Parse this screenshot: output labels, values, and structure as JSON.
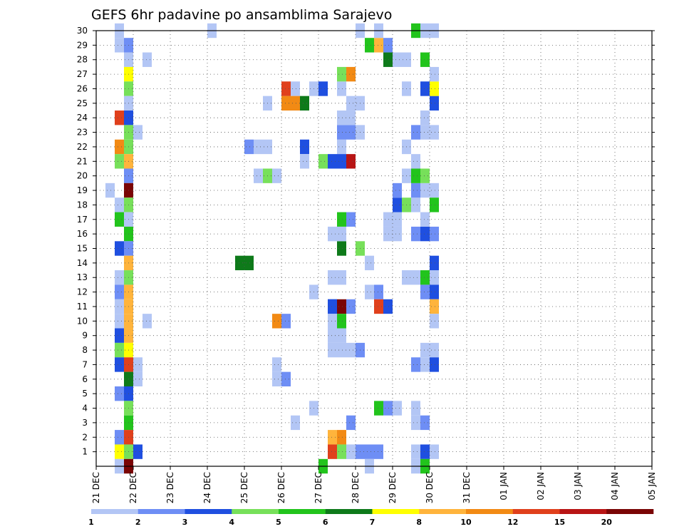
{
  "chart_data": {
    "type": "heatmap",
    "title": "GEFS 6hr padavine po ansamblima Sarajevo",
    "xlabel": "",
    "ylabel": "",
    "x_tick_labels": [
      "21 DEC",
      "22 DEC",
      "23 DEC",
      "24 DEC",
      "25 DEC",
      "26 DEC",
      "27 DEC",
      "28 DEC",
      "29 DEC",
      "30 DEC",
      "31 DEC",
      "01 JAN",
      "02 JAN",
      "03 JAN",
      "04 JAN",
      "05 JAN"
    ],
    "y_ticks": [
      1,
      2,
      3,
      4,
      5,
      6,
      7,
      8,
      9,
      10,
      11,
      12,
      13,
      14,
      15,
      16,
      17,
      18,
      19,
      20,
      21,
      22,
      23,
      24,
      25,
      26,
      27,
      28,
      29,
      30
    ],
    "xlim": [
      0,
      60
    ],
    "ylim": [
      0,
      30
    ],
    "grid": true,
    "colorbar": {
      "tick_labels": [
        "1",
        "2",
        "3",
        "4",
        "5",
        "6",
        "7",
        "8",
        "10",
        "12",
        "15",
        "20"
      ],
      "colors": [
        "#b3c6f5",
        "#6e8ef5",
        "#1f4fe0",
        "#77e05a",
        "#22c41c",
        "#0e7a1a",
        "#ffff00",
        "#ffb43c",
        "#f28a14",
        "#e0401c",
        "#b81414",
        "#7a0505"
      ]
    },
    "cells": [
      [
        2,
        30,
        0
      ],
      [
        3,
        29,
        1
      ],
      [
        2,
        29,
        0
      ],
      [
        3,
        28,
        0
      ],
      [
        5,
        28,
        0
      ],
      [
        3,
        27,
        6
      ],
      [
        3,
        26,
        3
      ],
      [
        3,
        25,
        0
      ],
      [
        2,
        24,
        9
      ],
      [
        3,
        24,
        2
      ],
      [
        3,
        23,
        3
      ],
      [
        4,
        23,
        0
      ],
      [
        2,
        22,
        8
      ],
      [
        3,
        22,
        3
      ],
      [
        2,
        21,
        3
      ],
      [
        3,
        21,
        7
      ],
      [
        3,
        20,
        1
      ],
      [
        1,
        19,
        0
      ],
      [
        3,
        19,
        11
      ],
      [
        2,
        18,
        0
      ],
      [
        3,
        18,
        3
      ],
      [
        2,
        17,
        4
      ],
      [
        3,
        17,
        0
      ],
      [
        3,
        16,
        4
      ],
      [
        2,
        15,
        2
      ],
      [
        3,
        15,
        1
      ],
      [
        3,
        14,
        7
      ],
      [
        2,
        13,
        0
      ],
      [
        3,
        13,
        3
      ],
      [
        2,
        12,
        1
      ],
      [
        3,
        12,
        7
      ],
      [
        2,
        11,
        0
      ],
      [
        3,
        11,
        7
      ],
      [
        2,
        10,
        0
      ],
      [
        3,
        10,
        7
      ],
      [
        5,
        10,
        0
      ],
      [
        2,
        9,
        2
      ],
      [
        3,
        9,
        7
      ],
      [
        2,
        8,
        3
      ],
      [
        3,
        8,
        6
      ],
      [
        2,
        7,
        2
      ],
      [
        3,
        7,
        9
      ],
      [
        4,
        7,
        0
      ],
      [
        3,
        6,
        5
      ],
      [
        4,
        6,
        0
      ],
      [
        2,
        5,
        1
      ],
      [
        3,
        5,
        2
      ],
      [
        3,
        4,
        3
      ],
      [
        3,
        3,
        4
      ],
      [
        2,
        2,
        1
      ],
      [
        3,
        2,
        9
      ],
      [
        2,
        1,
        6
      ],
      [
        3,
        1,
        3
      ],
      [
        4,
        1,
        2
      ],
      [
        2,
        0,
        0
      ],
      [
        3,
        0,
        11
      ],
      [
        12,
        30,
        0
      ],
      [
        15,
        14,
        5
      ],
      [
        16,
        14,
        5
      ],
      [
        16,
        22,
        1
      ],
      [
        17,
        22,
        0
      ],
      [
        18,
        22,
        0
      ],
      [
        17,
        20,
        0
      ],
      [
        18,
        20,
        3
      ],
      [
        19,
        20,
        0
      ],
      [
        18,
        25,
        0
      ],
      [
        20,
        25,
        0
      ],
      [
        19,
        7,
        0
      ],
      [
        19,
        6,
        0
      ],
      [
        20,
        6,
        1
      ],
      [
        19,
        10,
        8
      ],
      [
        20,
        10,
        1
      ],
      [
        20,
        26,
        9
      ],
      [
        21,
        26,
        0
      ],
      [
        20,
        25,
        8
      ],
      [
        21,
        25,
        8
      ],
      [
        22,
        25,
        5
      ],
      [
        21,
        3,
        0
      ],
      [
        22,
        22,
        2
      ],
      [
        22,
        21,
        0
      ],
      [
        23,
        26,
        0
      ],
      [
        23,
        4,
        0
      ],
      [
        23,
        12,
        0
      ],
      [
        24,
        26,
        2
      ],
      [
        24,
        21,
        3
      ],
      [
        25,
        21,
        2
      ],
      [
        24,
        0,
        4
      ],
      [
        25,
        2,
        7
      ],
      [
        25,
        1,
        9
      ],
      [
        26,
        2,
        8
      ],
      [
        26,
        1,
        3
      ],
      [
        27,
        1,
        0
      ],
      [
        25,
        11,
        2
      ],
      [
        25,
        13,
        0
      ],
      [
        26,
        13,
        0
      ],
      [
        25,
        11,
        2
      ],
      [
        26,
        11,
        11
      ],
      [
        27,
        11,
        1
      ],
      [
        25,
        10,
        0
      ],
      [
        26,
        10,
        4
      ],
      [
        25,
        9,
        0
      ],
      [
        26,
        9,
        0
      ],
      [
        25,
        8,
        0
      ],
      [
        26,
        8,
        0
      ],
      [
        26,
        15,
        5
      ],
      [
        26,
        17,
        4
      ],
      [
        27,
        17,
        1
      ],
      [
        25,
        16,
        0
      ],
      [
        26,
        16,
        0
      ],
      [
        26,
        22,
        0
      ],
      [
        26,
        23,
        1
      ],
      [
        27,
        23,
        1
      ],
      [
        28,
        23,
        0
      ],
      [
        26,
        24,
        0
      ],
      [
        27,
        24,
        0
      ],
      [
        26,
        26,
        0
      ],
      [
        26,
        27,
        3
      ],
      [
        27,
        27,
        8
      ],
      [
        27,
        25,
        0
      ],
      [
        28,
        25,
        0
      ],
      [
        26,
        21,
        2
      ],
      [
        27,
        21,
        10
      ],
      [
        27,
        3,
        1
      ],
      [
        27,
        8,
        0
      ],
      [
        28,
        8,
        1
      ],
      [
        28,
        1,
        1
      ],
      [
        29,
        1,
        1
      ],
      [
        30,
        1,
        1
      ],
      [
        29,
        0,
        0
      ],
      [
        28,
        15,
        3
      ],
      [
        29,
        14,
        0
      ],
      [
        29,
        12,
        0
      ],
      [
        30,
        12,
        1
      ],
      [
        30,
        29,
        7
      ],
      [
        29,
        29,
        4
      ],
      [
        31,
        29,
        1
      ],
      [
        31,
        28,
        5
      ],
      [
        32,
        28,
        0
      ],
      [
        30,
        30,
        0
      ],
      [
        28,
        30,
        0
      ],
      [
        27,
        1,
        0
      ],
      [
        30,
        4,
        4
      ],
      [
        31,
        4,
        1
      ],
      [
        32,
        4,
        0
      ],
      [
        30,
        11,
        9
      ],
      [
        31,
        11,
        2
      ],
      [
        31,
        16,
        0
      ],
      [
        32,
        16,
        0
      ],
      [
        32,
        17,
        0
      ],
      [
        31,
        17,
        0
      ],
      [
        32,
        18,
        2
      ],
      [
        33,
        18,
        3
      ],
      [
        34,
        18,
        0
      ],
      [
        32,
        19,
        1
      ],
      [
        34,
        19,
        1
      ],
      [
        35,
        19,
        0
      ],
      [
        36,
        19,
        0
      ],
      [
        33,
        20,
        0
      ],
      [
        35,
        20,
        3
      ],
      [
        34,
        20,
        4
      ],
      [
        33,
        22,
        0
      ],
      [
        34,
        21,
        0
      ],
      [
        33,
        26,
        0
      ],
      [
        35,
        24,
        0
      ],
      [
        36,
        25,
        2
      ],
      [
        35,
        26,
        2
      ],
      [
        36,
        26,
        6
      ],
      [
        36,
        27,
        0
      ],
      [
        35,
        28,
        4
      ],
      [
        34,
        23,
        1
      ],
      [
        35,
        23,
        0
      ],
      [
        36,
        23,
        0
      ],
      [
        34,
        16,
        1
      ],
      [
        35,
        16,
        2
      ],
      [
        36,
        16,
        1
      ],
      [
        34,
        13,
        0
      ],
      [
        35,
        13,
        4
      ],
      [
        36,
        13,
        0
      ],
      [
        35,
        12,
        1
      ],
      [
        35,
        8,
        0
      ],
      [
        36,
        8,
        0
      ],
      [
        36,
        7,
        2
      ],
      [
        34,
        7,
        1
      ],
      [
        35,
        7,
        0
      ],
      [
        34,
        4,
        0
      ],
      [
        34,
        3,
        0
      ],
      [
        35,
        3,
        1
      ],
      [
        34,
        1,
        0
      ],
      [
        35,
        1,
        2
      ],
      [
        36,
        1,
        0
      ],
      [
        35,
        0,
        4
      ],
      [
        34,
        0,
        0
      ],
      [
        34,
        30,
        4
      ],
      [
        35,
        30,
        0
      ],
      [
        36,
        30,
        0
      ],
      [
        33,
        28,
        0
      ],
      [
        33,
        13,
        0
      ],
      [
        35,
        17,
        0
      ],
      [
        36,
        18,
        4
      ],
      [
        36,
        14,
        2
      ],
      [
        36,
        12,
        2
      ],
      [
        36,
        11,
        7
      ],
      [
        36,
        10,
        0
      ]
    ]
  }
}
